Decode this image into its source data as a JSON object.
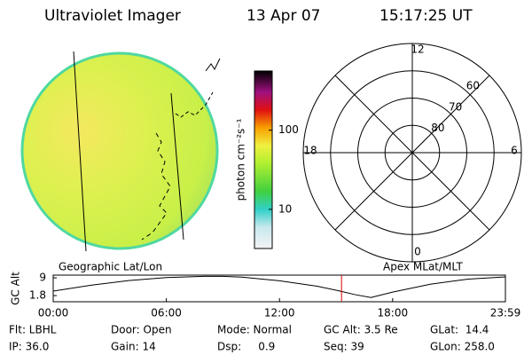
{
  "header": {
    "instrument": "Ultraviolet Imager",
    "date": "13 Apr 07",
    "time": "15:17:25 UT"
  },
  "image": {
    "title": "Geographic Lat/Lon"
  },
  "chart_data": [
    {
      "type": "colorbar",
      "label": "photon cm⁻²s⁻¹",
      "log": true,
      "ylim": [
        3.2,
        560
      ],
      "yticks": [
        10,
        100
      ]
    },
    {
      "type": "polar",
      "title": "Apex MLat/MLT",
      "rlim": [
        90,
        50
      ],
      "rticks": [
        80,
        70,
        60
      ],
      "mlt_ticks": [
        12,
        18,
        6,
        0
      ]
    },
    {
      "type": "line",
      "ylabel": "GC Alt",
      "color": "#000000",
      "x": [
        0,
        2,
        4,
        6,
        8,
        9,
        10,
        12,
        14,
        15.29,
        16,
        16.85,
        18,
        20,
        22,
        23.98
      ],
      "values": [
        3.6,
        6.0,
        7.9,
        9.1,
        9.6,
        9.6,
        9.3,
        7.8,
        5.6,
        3.5,
        2.2,
        1.0,
        3.2,
        6.4,
        8.5,
        9.4
      ],
      "xlim": [
        0,
        23.98
      ],
      "xticks": [
        {
          "value": 0,
          "label": "00:00"
        },
        {
          "value": 6,
          "label": "06:00"
        },
        {
          "value": 12,
          "label": "12:00"
        },
        {
          "value": 18,
          "label": "18:00"
        },
        {
          "value": 23.98,
          "label": "23:59"
        }
      ],
      "ylim": [
        -0.7,
        10.1
      ],
      "yticks": [
        1.8,
        9.0
      ],
      "marker_x": 15.29,
      "marker_color": "#dd0000"
    }
  ],
  "info": {
    "rows": [
      [
        "Flt: LBHL",
        "Door: Open",
        "Mode: Normal",
        "GC Alt: 3.5 Re",
        "GLat:  14.4"
      ],
      [
        "IP: 36.0",
        "Gain: 14",
        "Dsp:     0.9",
        "Seq: 39",
        "GLon: 258.0"
      ]
    ]
  }
}
